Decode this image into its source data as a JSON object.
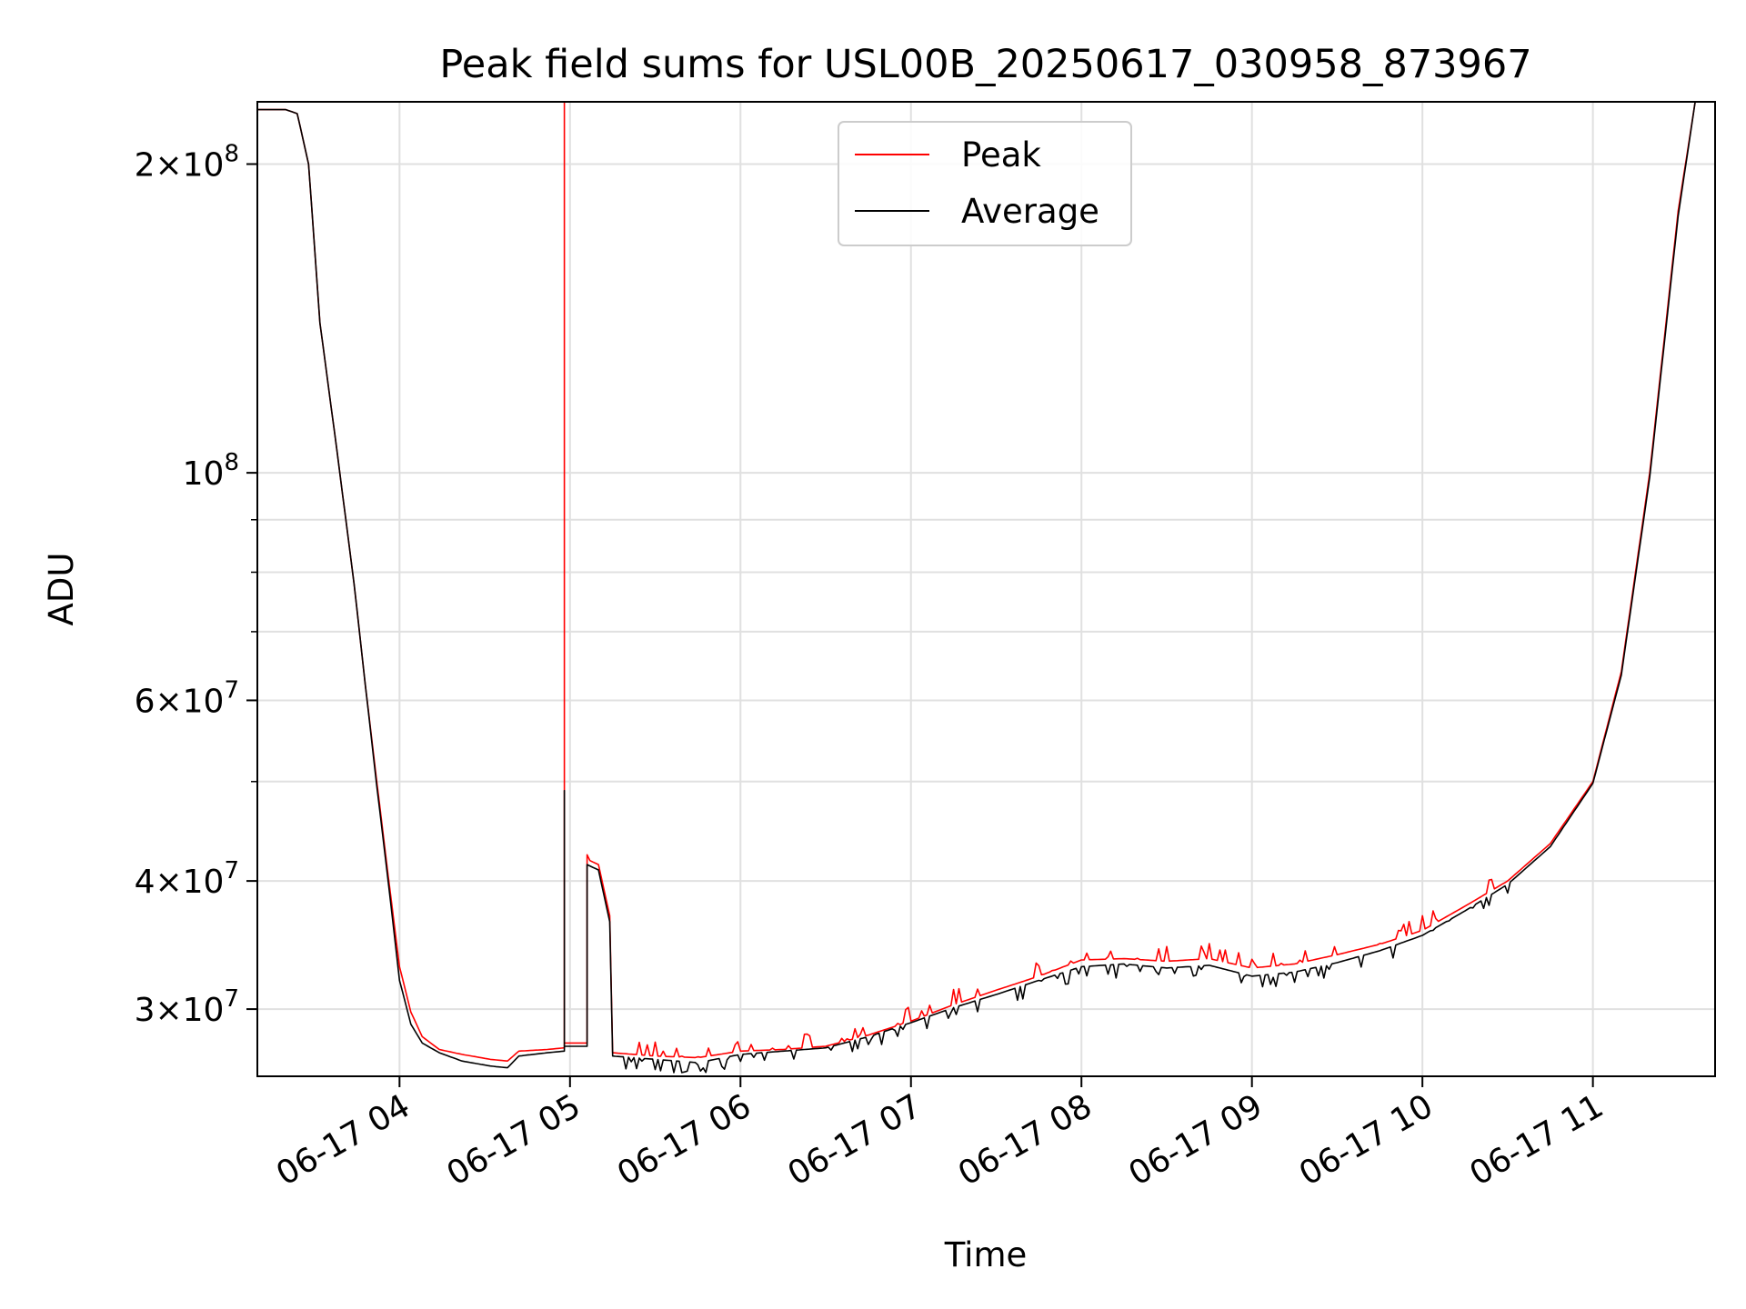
{
  "chart_data": {
    "type": "line",
    "title": "Peak field sums for USL00B_20250617_030958_873967",
    "xlabel": "Time",
    "ylabel": "ADU",
    "yscale": "log",
    "grid": true,
    "legend_position": "top-center",
    "xlim": [
      "2025-06-17 03:09:58",
      "2025-06-17 11:43:00"
    ],
    "ylim": [
      25800000,
      230000000
    ],
    "x_ticks": [
      {
        "t": "2025-06-17 04:00",
        "label": "06-17 04"
      },
      {
        "t": "2025-06-17 05:00",
        "label": "06-17 05"
      },
      {
        "t": "2025-06-17 06:00",
        "label": "06-17 06"
      },
      {
        "t": "2025-06-17 07:00",
        "label": "06-17 07"
      },
      {
        "t": "2025-06-17 08:00",
        "label": "06-17 08"
      },
      {
        "t": "2025-06-17 09:00",
        "label": "06-17 09"
      },
      {
        "t": "2025-06-17 10:00",
        "label": "06-17 10"
      },
      {
        "t": "2025-06-17 11:00",
        "label": "06-17 11"
      }
    ],
    "y_ticks": [
      {
        "v": 30000000,
        "mant": "3",
        "exp": "7"
      },
      {
        "v": 40000000,
        "mant": "4",
        "exp": "7"
      },
      {
        "v": 60000000,
        "mant": "6",
        "exp": "7"
      },
      {
        "v": 100000000,
        "mant": "",
        "exp": "8"
      },
      {
        "v": 200000000,
        "mant": "2",
        "exp": "8"
      }
    ],
    "y_minor_ticks": [
      50000000,
      70000000,
      80000000,
      90000000
    ],
    "series": [
      {
        "name": "Peak",
        "color": "#ff0000",
        "points": [
          [
            "2025-06-17 03:10",
            226000000
          ],
          [
            "2025-06-17 03:20",
            226000000
          ],
          [
            "2025-06-17 03:24",
            224000000
          ],
          [
            "2025-06-17 03:28",
            200000000
          ],
          [
            "2025-06-17 03:32",
            140000000
          ],
          [
            "2025-06-17 03:38",
            105000000
          ],
          [
            "2025-06-17 03:44",
            78000000
          ],
          [
            "2025-06-17 03:48",
            62000000
          ],
          [
            "2025-06-17 03:52",
            50000000
          ],
          [
            "2025-06-17 03:56",
            40500000
          ],
          [
            "2025-06-17 04:00",
            33000000
          ],
          [
            "2025-06-17 04:04",
            29800000
          ],
          [
            "2025-06-17 04:08",
            28200000
          ],
          [
            "2025-06-17 04:14",
            27400000
          ],
          [
            "2025-06-17 04:22",
            27100000
          ],
          [
            "2025-06-17 04:32",
            26800000
          ],
          [
            "2025-06-17 04:38",
            26700000
          ],
          [
            "2025-06-17 04:42",
            27300000
          ],
          [
            "2025-06-17 04:52",
            27400000
          ],
          [
            "2025-06-17 04:58",
            27500000
          ],
          [
            "2025-06-17 04:58",
            230000000
          ],
          [
            "2025-06-17 04:58",
            27800000
          ],
          [
            "2025-06-17 05:06",
            27800000
          ],
          [
            "2025-06-17 05:06",
            42000000
          ],
          [
            "2025-06-17 05:10",
            41500000
          ],
          [
            "2025-06-17 05:14",
            37000000
          ],
          [
            "2025-06-17 05:15",
            27200000
          ],
          [
            "2025-06-17 05:30",
            27000000
          ],
          [
            "2025-06-17 05:45",
            26900000
          ],
          [
            "2025-06-17 06:00",
            27300000
          ],
          [
            "2025-06-17 06:15",
            27400000
          ],
          [
            "2025-06-17 06:30",
            27600000
          ],
          [
            "2025-06-17 06:45",
            28300000
          ],
          [
            "2025-06-17 07:00",
            29200000
          ],
          [
            "2025-06-17 07:15",
            30300000
          ],
          [
            "2025-06-17 07:30",
            31300000
          ],
          [
            "2025-06-17 07:45",
            32300000
          ],
          [
            "2025-06-17 08:00",
            33500000
          ],
          [
            "2025-06-17 08:15",
            33600000
          ],
          [
            "2025-06-17 08:30",
            33400000
          ],
          [
            "2025-06-17 08:45",
            33600000
          ],
          [
            "2025-06-17 09:00",
            32900000
          ],
          [
            "2025-06-17 09:15",
            33200000
          ],
          [
            "2025-06-17 09:30",
            33900000
          ],
          [
            "2025-06-17 09:45",
            34700000
          ],
          [
            "2025-06-17 10:00",
            35800000
          ],
          [
            "2025-06-17 10:15",
            37800000
          ],
          [
            "2025-06-17 10:30",
            40000000
          ],
          [
            "2025-06-17 10:45",
            43500000
          ],
          [
            "2025-06-17 11:00",
            50000000
          ],
          [
            "2025-06-17 11:10",
            64000000
          ],
          [
            "2025-06-17 11:20",
            100000000
          ],
          [
            "2025-06-17 11:30",
            180000000
          ],
          [
            "2025-06-17 11:36",
            230000000
          ]
        ]
      },
      {
        "name": "Average",
        "color": "#000000",
        "points": [
          [
            "2025-06-17 03:10",
            226000000
          ],
          [
            "2025-06-17 03:20",
            226000000
          ],
          [
            "2025-06-17 03:24",
            224000000
          ],
          [
            "2025-06-17 03:28",
            200000000
          ],
          [
            "2025-06-17 03:32",
            140000000
          ],
          [
            "2025-06-17 03:38",
            105000000
          ],
          [
            "2025-06-17 03:44",
            78000000
          ],
          [
            "2025-06-17 03:48",
            62000000
          ],
          [
            "2025-06-17 03:52",
            49500000
          ],
          [
            "2025-06-17 03:56",
            40000000
          ],
          [
            "2025-06-17 04:00",
            32000000
          ],
          [
            "2025-06-17 04:04",
            29000000
          ],
          [
            "2025-06-17 04:08",
            27800000
          ],
          [
            "2025-06-17 04:14",
            27200000
          ],
          [
            "2025-06-17 04:22",
            26700000
          ],
          [
            "2025-06-17 04:32",
            26400000
          ],
          [
            "2025-06-17 04:38",
            26300000
          ],
          [
            "2025-06-17 04:42",
            27000000
          ],
          [
            "2025-06-17 04:52",
            27200000
          ],
          [
            "2025-06-17 04:58",
            27300000
          ],
          [
            "2025-06-17 04:58",
            49000000
          ],
          [
            "2025-06-17 04:58",
            27600000
          ],
          [
            "2025-06-17 05:06",
            27600000
          ],
          [
            "2025-06-17 05:06",
            41500000
          ],
          [
            "2025-06-17 05:10",
            41000000
          ],
          [
            "2025-06-17 05:14",
            36500000
          ],
          [
            "2025-06-17 05:15",
            27000000
          ],
          [
            "2025-06-17 05:30",
            26800000
          ],
          [
            "2025-06-17 05:45",
            26600000
          ],
          [
            "2025-06-17 06:00",
            27100000
          ],
          [
            "2025-06-17 06:15",
            27300000
          ],
          [
            "2025-06-17 06:30",
            27500000
          ],
          [
            "2025-06-17 06:45",
            28200000
          ],
          [
            "2025-06-17 07:00",
            29100000
          ],
          [
            "2025-06-17 07:15",
            30100000
          ],
          [
            "2025-06-17 07:30",
            31000000
          ],
          [
            "2025-06-17 07:45",
            32000000
          ],
          [
            "2025-06-17 08:00",
            33000000
          ],
          [
            "2025-06-17 08:15",
            33200000
          ],
          [
            "2025-06-17 08:30",
            32900000
          ],
          [
            "2025-06-17 08:45",
            33100000
          ],
          [
            "2025-06-17 09:00",
            32300000
          ],
          [
            "2025-06-17 09:15",
            32600000
          ],
          [
            "2025-06-17 09:30",
            33300000
          ],
          [
            "2025-06-17 09:45",
            34200000
          ],
          [
            "2025-06-17 10:00",
            35400000
          ],
          [
            "2025-06-17 10:15",
            37400000
          ],
          [
            "2025-06-17 10:30",
            39700000
          ],
          [
            "2025-06-17 10:45",
            43200000
          ],
          [
            "2025-06-17 11:00",
            49800000
          ],
          [
            "2025-06-17 11:10",
            63500000
          ],
          [
            "2025-06-17 11:20",
            99000000
          ],
          [
            "2025-06-17 11:30",
            178000000
          ],
          [
            "2025-06-17 11:36",
            230000000
          ]
        ]
      }
    ]
  }
}
